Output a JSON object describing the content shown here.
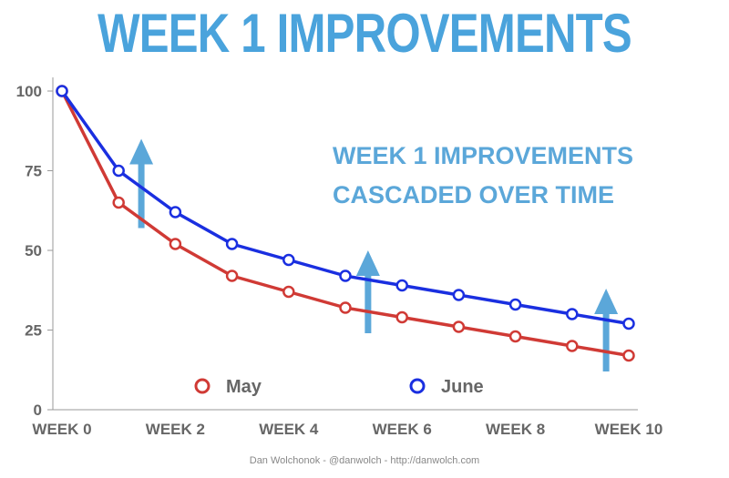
{
  "colors": {
    "title": "#4aa3dc",
    "may": "#d03a35",
    "june": "#1a2fe0",
    "arrow": "#5ba7d9",
    "axis": "#999999"
  },
  "chart_data": {
    "type": "line",
    "title": "WEEK 1 IMPROVEMENTS",
    "x": [
      0,
      1,
      2,
      3,
      4,
      5,
      6,
      7,
      8,
      9,
      10
    ],
    "x_tick_labels": [
      {
        "x": 0,
        "label": "WEEK 0"
      },
      {
        "x": 2,
        "label": "WEEK 2"
      },
      {
        "x": 4,
        "label": "WEEK 4"
      },
      {
        "x": 6,
        "label": "WEEK 6"
      },
      {
        "x": 8,
        "label": "WEEK 8"
      },
      {
        "x": 10,
        "label": "WEEK 10"
      }
    ],
    "y_ticks": [
      0,
      25,
      50,
      75,
      100
    ],
    "ylim": [
      0,
      100
    ],
    "xlim": [
      0,
      10
    ],
    "series": [
      {
        "name": "May",
        "color": "#d03a35",
        "values": [
          100,
          65,
          52,
          42,
          37,
          32,
          29,
          26,
          23,
          20,
          17
        ]
      },
      {
        "name": "June",
        "color": "#1a2fe0",
        "values": [
          100,
          75,
          62,
          52,
          47,
          42,
          39,
          36,
          33,
          30,
          27
        ]
      }
    ],
    "annotation": [
      "WEEK 1 IMPROVEMENTS",
      "CASCADED OVER TIME"
    ],
    "arrows": [
      {
        "x": 1.4,
        "from": 57,
        "to": 85
      },
      {
        "x": 5.4,
        "from": 24,
        "to": 50
      },
      {
        "x": 9.6,
        "from": 12,
        "to": 38
      }
    ],
    "legend_position": "bottom",
    "credit": "Dan Wolchonok - @danwolch - http://danwolch.com"
  }
}
